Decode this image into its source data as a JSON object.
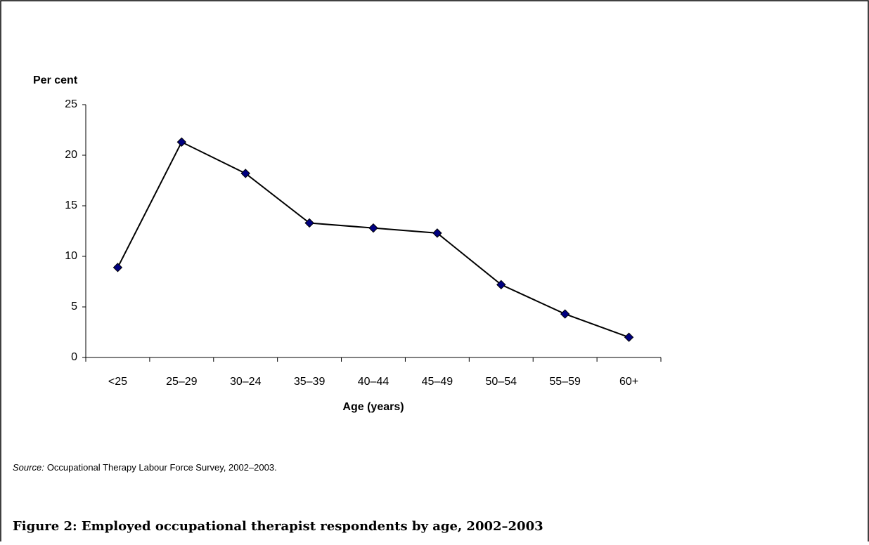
{
  "chart_data": {
    "type": "line",
    "title": "Figure 2: Employed occupational therapist respondents by age, 2002–2003",
    "y_label": "Per cent",
    "x_label": "Age (years)",
    "source_label": "Source:",
    "source_text": "Occupational Therapy Labour Force Survey, 2002–2003.",
    "categories": [
      "<25",
      "25–29",
      "30–24",
      "35–39",
      "40–44",
      "45–49",
      "50–54",
      "55–59",
      "60+"
    ],
    "series": [
      {
        "name": "Employed occupational therapist respondents",
        "color": "#000080",
        "values": [
          8.9,
          21.3,
          18.2,
          13.3,
          12.8,
          12.3,
          7.2,
          4.3,
          2.0
        ]
      }
    ],
    "ylim": [
      0,
      25
    ],
    "yticks": [
      0,
      5,
      10,
      15,
      20,
      25
    ],
    "grid": false
  }
}
